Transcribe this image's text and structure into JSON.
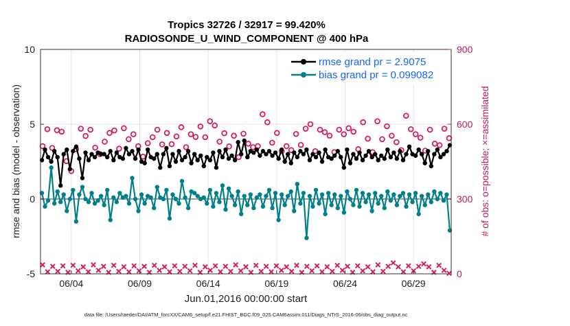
{
  "chart_data": {
    "type": "line",
    "title_line1": "Tropics 32726 / 32917 = 99.420%",
    "title_line2": "RADIOSONDE_U_WIND_COMPONENT @ 400 hPa",
    "ylabel_left": "rmse and bias (model - observation)",
    "ylabel_right": "# of obs: o=possible; ×=assimilated",
    "xlabel": "Jun.01,2016 00:00:00 start",
    "footer": "data file: /Users/raeder/DAI/ATM_forcXX/CAM6_setup/f.e21.FHIST_BGC.f09_025.CAM6assim.011/Diags_NTrS_2016-06/obs_diag_output.nc",
    "ylim_left": [
      -5,
      10
    ],
    "ylim_right": [
      0,
      900
    ],
    "xlim_days": [
      0.75,
      30.75
    ],
    "yticks_left": [
      "-5",
      "0",
      "5",
      "10"
    ],
    "yticks_right": [
      "0",
      "300",
      "600",
      "900"
    ],
    "xticks": [
      {
        "day": 3,
        "label": "06/04"
      },
      {
        "day": 8,
        "label": "06/09"
      },
      {
        "day": 13,
        "label": "06/14"
      },
      {
        "day": 18,
        "label": "06/19"
      },
      {
        "day": 23,
        "label": "06/24"
      },
      {
        "day": 28,
        "label": "06/29"
      }
    ],
    "series": [
      {
        "name": "rmse grand pr = 2.9075",
        "color": "#000000",
        "axis": "left",
        "values": [
          2.6,
          3.3,
          2.8,
          2.5,
          3.2,
          2.8,
          0.9,
          3.0,
          3.3,
          2.0,
          3.2,
          3.5,
          2.7,
          1.4,
          3.1,
          2.6,
          3.0,
          2.8,
          3.1,
          3.0,
          3.0,
          2.8,
          3.2,
          2.6,
          3.1,
          2.8,
          2.7,
          3.4,
          3.0,
          3.2,
          2.7,
          3.3,
          2.5,
          2.4,
          3.3,
          2.8,
          2.7,
          3.0,
          2.1,
          3.0,
          3.4,
          2.2,
          3.0,
          2.5,
          3.2,
          2.6,
          2.8,
          3.2,
          2.4,
          3.0,
          2.6,
          2.9,
          2.2,
          2.8,
          2.6,
          3.1,
          2.1,
          3.2,
          2.8,
          3.3,
          2.7,
          2.9,
          2.6,
          3.8,
          3.0,
          3.9,
          2.8,
          3.2,
          3.1,
          3.3,
          2.9,
          3.2,
          3.0,
          3.2,
          2.9,
          3.1,
          2.7,
          3.3,
          2.5,
          3.0,
          2.4,
          3.1,
          2.8,
          3.2,
          3.0,
          3.3,
          2.6,
          3.0,
          2.8,
          3.1,
          2.5,
          3.3,
          2.8,
          2.7,
          2.9,
          3.2,
          2.8,
          2.1,
          3.3,
          2.4,
          3.0,
          2.7,
          3.1,
          2.6,
          2.9,
          3.2,
          2.8,
          3.0,
          2.6,
          2.9,
          2.7,
          3.3,
          2.8,
          3.1,
          2.7,
          3.2,
          2.6,
          3.0,
          3.5,
          3.0,
          2.9,
          3.3,
          3.0,
          2.4,
          3.2,
          2.2,
          3.0,
          3.3,
          2.8,
          3.0,
          3.2,
          3.6
        ]
      },
      {
        "name": "bias grand pr = 0.099082",
        "color": "#00808a",
        "axis": "left",
        "values": [
          0.4,
          -0.5,
          -0.1,
          2.1,
          -0.3,
          0.5,
          -0.2,
          0.3,
          -0.8,
          0.0,
          0.6,
          -1.5,
          0.3,
          0.8,
          0.0,
          -0.2,
          0.4,
          -0.3,
          -0.1,
          0.2,
          -0.4,
          0.6,
          -1.4,
          0.1,
          -0.2,
          0.4,
          0.1,
          0.2,
          -0.3,
          1.4,
          0.0,
          -0.8,
          0.3,
          -0.3,
          0.2,
          0.1,
          -0.6,
          0.8,
          0.1,
          0.0,
          0.6,
          -1.3,
          0.3,
          0.0,
          -0.3,
          1.2,
          0.1,
          -0.6,
          0.5,
          0.4,
          0.2,
          0.0,
          0.1,
          -0.3,
          0.6,
          -0.5,
          0.4,
          -0.2,
          0.9,
          -0.7,
          0.7,
          0.2,
          -0.4,
          0.5,
          -1.0,
          0.2,
          -0.4,
          0.3,
          -0.6,
          0.1,
          0.3,
          -0.5,
          0.2,
          0.6,
          -0.6,
          0.4,
          -1.4,
          0.3,
          -0.4,
          0.2,
          0.5,
          -0.8,
          1.0,
          -0.3,
          0.4,
          -2.6,
          0.2,
          -0.5,
          0.6,
          -0.3,
          0.3,
          -1.0,
          0.4,
          -0.4,
          0.3,
          -0.6,
          0.2,
          -0.9,
          0.5,
          0.0,
          -0.4,
          0.6,
          -0.5,
          0.4,
          -0.2,
          0.3,
          -0.8,
          0.4,
          -0.3,
          0.2,
          -0.6,
          0.5,
          -0.1,
          0.3,
          -0.4,
          0.2,
          0.4,
          -0.5,
          0.3,
          -0.2,
          0.4,
          -1.0,
          0.2,
          -0.4,
          0.3,
          -0.2,
          0.5,
          0.0,
          0.4,
          -0.1,
          0.3,
          -2.1
        ]
      },
      {
        "name": "obs possible",
        "color": "#d81b60",
        "axis": "right",
        "marker": "o",
        "values": [
          512,
          580,
          505,
          576,
          570,
          452,
          412,
          500,
          582,
          553,
          578,
          506,
          480,
          530,
          565,
          575,
          502,
          584,
          540,
          560,
          512,
          470,
          524,
          548,
          578,
          519,
          565,
          520,
          551,
          588,
          508,
          560,
          549,
          591,
          548,
          612,
          595,
          530,
          564,
          511,
          554,
          468,
          562,
          522,
          508,
          512,
          640,
          608,
          526,
          565,
          492,
          512,
          496,
          561,
          517,
          582,
          600,
          492,
          578,
          568,
          554,
          488,
          578,
          560,
          584,
          570,
          500,
          608,
          542,
          488,
          612,
          540,
          592,
          554,
          528,
          496,
          634,
          580,
          560,
          546,
          494,
          578,
          522,
          516,
          582,
          544
        ]
      },
      {
        "name": "obs assimilated",
        "color": "#d81b60",
        "axis": "right",
        "marker": "x",
        "values": [
          36,
          8,
          30,
          10,
          32,
          6,
          34,
          12,
          28,
          8,
          36,
          14,
          30,
          6,
          34,
          10,
          28,
          8,
          32,
          12,
          30,
          6,
          34,
          14,
          28,
          8,
          32,
          10,
          30,
          12,
          34,
          6,
          28,
          14,
          32,
          8,
          30,
          10,
          36,
          12,
          28,
          6,
          34,
          10,
          30,
          8,
          32,
          14,
          28,
          10,
          34,
          6,
          30,
          12,
          32,
          8,
          28,
          10,
          34,
          14,
          30,
          6,
          32,
          12,
          28,
          8,
          36,
          10,
          30,
          44,
          28,
          8,
          32,
          12,
          30,
          40,
          28,
          6,
          34,
          14,
          2
        ]
      }
    ]
  }
}
